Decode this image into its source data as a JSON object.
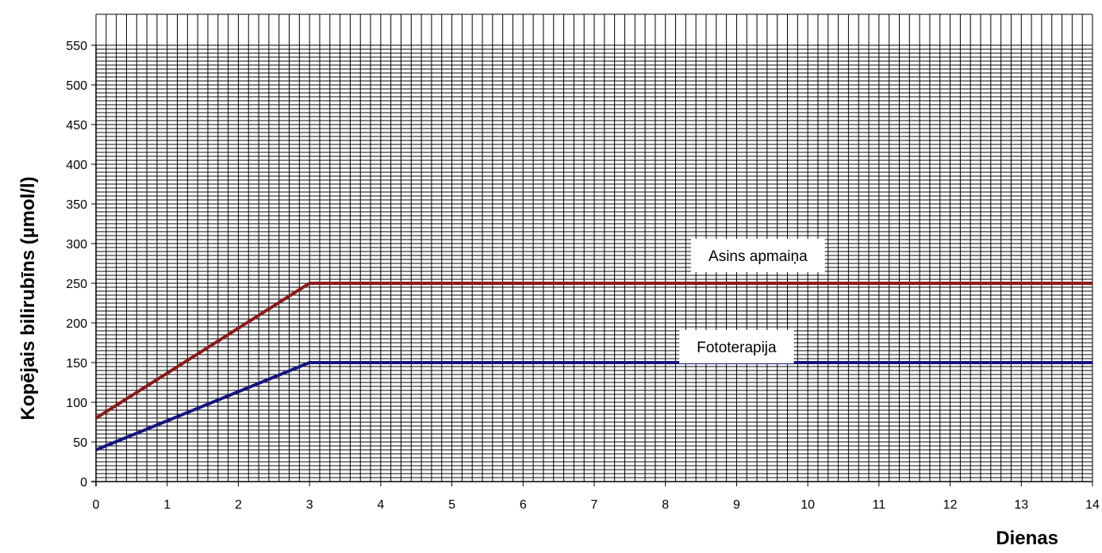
{
  "chart_data": {
    "type": "line",
    "title": "",
    "xlabel": "Dienas",
    "ylabel": "Kopējais bilirubīns (µmol/l)",
    "xlim": [
      0,
      14
    ],
    "ylim": [
      0,
      550
    ],
    "x_ticks": [
      0,
      1,
      2,
      3,
      4,
      5,
      6,
      7,
      8,
      9,
      10,
      11,
      12,
      13,
      14
    ],
    "y_ticks": [
      0,
      50,
      100,
      150,
      200,
      250,
      300,
      350,
      400,
      450,
      500,
      550
    ],
    "grid": true,
    "legend": "none",
    "series": [
      {
        "name": "Asins apmaiņa",
        "color": "#8B1A1A",
        "points": [
          {
            "x": 0,
            "y": 80
          },
          {
            "x": 3,
            "y": 250
          },
          {
            "x": 14,
            "y": 250
          }
        ]
      },
      {
        "name": "Fototerapija",
        "color": "#141480",
        "points": [
          {
            "x": 0,
            "y": 40
          },
          {
            "x": 3,
            "y": 150
          },
          {
            "x": 14,
            "y": 150
          }
        ]
      }
    ],
    "annotations": [
      {
        "text": "Asins apmaiņa",
        "x": 9.3,
        "y": 285
      },
      {
        "text": "Fototerapija",
        "x": 9.0,
        "y": 170
      }
    ]
  }
}
